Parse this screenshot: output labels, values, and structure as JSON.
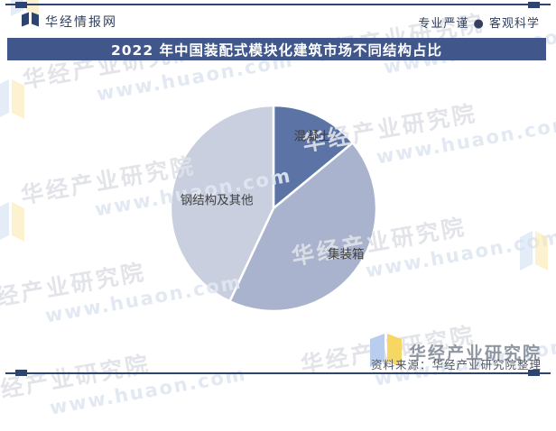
{
  "header": {
    "brand": "华经情报网",
    "tagline": "专业严谨 ● 客观科学"
  },
  "title_bar": {
    "title": "2022 年中国装配式模块化建筑市场不同结构占比"
  },
  "chart_data": {
    "type": "pie",
    "title": "2022 年中国装配式模块化建筑市场不同结构占比",
    "unit": "%",
    "direction": "clockwise",
    "start_angle_deg": 0,
    "labels_shown": "category names on slices",
    "slices": [
      {
        "label": "混凝土",
        "value": 14,
        "color": "#5b73a5"
      },
      {
        "label": "集装箱",
        "value": 43,
        "color": "#a9b3ce"
      },
      {
        "label": "钢结构及其他",
        "value": 43,
        "color": "#c9cfdf"
      }
    ]
  },
  "watermark": {
    "line1": "华经产业研究院",
    "line2": "www.huaon.com"
  },
  "footer": {
    "logo_text": "华经产业研究院",
    "source": "资料来源：华经产业研究院整理"
  },
  "colors": {
    "title_bar_bg": "#41568a",
    "border_navy": "#2e4470",
    "header_text": "#33415e",
    "slice_label_text": "#3f3f3f",
    "footer_logo_text": "#8f96a1",
    "source_text": "#4f5663",
    "logo_page_blue": "#b9cdee",
    "logo_page_yellow": "#f7d763"
  }
}
